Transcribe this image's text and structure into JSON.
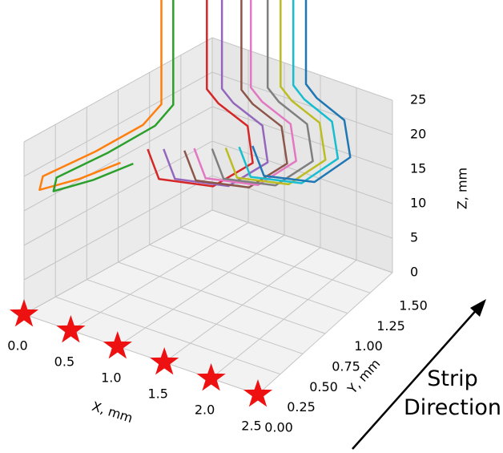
{
  "chart_data": {
    "type": "line3d",
    "xlabel": "X, mm",
    "ylabel": "Y, mm",
    "zlabel": "Z, mm",
    "annotation": "Strip Direction",
    "xlim": [
      0,
      2.5
    ],
    "ylim": [
      0,
      1.5
    ],
    "zlim": [
      0,
      25
    ],
    "xticks": [
      {
        "value": 0,
        "label": "0.0"
      },
      0.5,
      {
        "value": 1,
        "label": "1.0"
      },
      1.5,
      {
        "value": 2,
        "label": "2.0"
      },
      2.5
    ],
    "yticks": [
      {
        "value": 0,
        "label": "0.00"
      },
      0.25,
      {
        "value": 0.5,
        "label": "0.50"
      },
      0.75,
      {
        "value": 1,
        "label": "1.00"
      },
      1.25,
      {
        "value": 1.5,
        "label": "1.50"
      }
    ],
    "zticks": [
      0,
      5,
      10,
      15,
      20,
      25
    ],
    "grid": true,
    "markers": {
      "color": "#ee1111",
      "x": [
        0,
        0.5,
        1,
        1.5,
        2,
        2.5
      ],
      "y": [
        0,
        0,
        0,
        0,
        0,
        0
      ],
      "z": [
        0,
        0,
        0,
        0,
        0,
        0
      ]
    },
    "series": [
      {
        "color": "#ff7f0e",
        "x": [
          0.15,
          0.15,
          0.15,
          0.1,
          0,
          0.1,
          0.2,
          0.25
        ],
        "y": [
          1,
          1,
          0.85,
          0.5,
          0.15,
          0.05,
          0.3,
          0.6
        ],
        "z": [
          45,
          21,
          19.5,
          19,
          18.5,
          18,
          17.5,
          17
        ]
      },
      {
        "color": "#2ca02c",
        "x": [
          0.3,
          0.3,
          0.3,
          0.25,
          0.15,
          0.25,
          0.35,
          0.4
        ],
        "y": [
          1,
          1,
          0.85,
          0.5,
          0.15,
          0.05,
          0.3,
          0.6
        ],
        "z": [
          45,
          21.5,
          20,
          19.5,
          19,
          18.5,
          18,
          17.5
        ]
      },
      {
        "color": "#d62728",
        "x": [
          0.5,
          0.5,
          0.65,
          1.1,
          1.5,
          1.4,
          0.9,
          0.5
        ],
        "y": [
          1.15,
          1.15,
          1.15,
          1.1,
          0.85,
          0.55,
          0.45,
          0.65
        ],
        "z": [
          45,
          23,
          21.5,
          20.5,
          19.5,
          19,
          19,
          19.5
        ]
      },
      {
        "color": "#9467bd",
        "x": [
          0.62,
          0.62,
          0.77,
          1.22,
          1.62,
          1.52,
          1.02,
          0.62
        ],
        "y": [
          1.2,
          1.2,
          1.2,
          1.15,
          0.9,
          0.6,
          0.5,
          0.7
        ],
        "z": [
          45,
          23,
          21.5,
          20.5,
          19.5,
          19,
          19,
          19.5
        ]
      },
      {
        "color": "#8c564b",
        "x": [
          0.8,
          0.8,
          0.95,
          1.4,
          1.8,
          1.7,
          1.2,
          0.8
        ],
        "y": [
          1.25,
          1.25,
          1.25,
          1.2,
          0.95,
          0.65,
          0.55,
          0.75
        ],
        "z": [
          45,
          23,
          21.5,
          20.5,
          19.5,
          19,
          19,
          19.5
        ]
      },
      {
        "color": "#e377c2",
        "x": [
          0.85,
          0.85,
          1,
          1.45,
          1.85,
          1.75,
          1.25,
          0.85
        ],
        "y": [
          1.3,
          1.3,
          1.3,
          1.25,
          1,
          0.7,
          0.6,
          0.8
        ],
        "z": [
          45,
          23,
          21.5,
          20.5,
          19.5,
          19,
          19,
          19.5
        ]
      },
      {
        "color": "#7f7f7f",
        "x": [
          1,
          1,
          1.15,
          1.6,
          2,
          1.9,
          1.4,
          1
        ],
        "y": [
          1.35,
          1.35,
          1.35,
          1.3,
          1.05,
          0.75,
          0.65,
          0.85
        ],
        "z": [
          45,
          23,
          21.5,
          20.5,
          19.5,
          19,
          19,
          19.5
        ]
      },
      {
        "color": "#bcbd22",
        "x": [
          1.1,
          1.1,
          1.25,
          1.7,
          2.1,
          2,
          1.5,
          1.1
        ],
        "y": [
          1.4,
          1.4,
          1.4,
          1.35,
          1.1,
          0.8,
          0.7,
          0.9
        ],
        "z": [
          45,
          23,
          21.5,
          20.5,
          19.5,
          19,
          19,
          19.5
        ]
      },
      {
        "color": "#17becf",
        "x": [
          1.2,
          1.2,
          1.35,
          1.8,
          2.2,
          2.1,
          1.6,
          1.2
        ],
        "y": [
          1.45,
          1.45,
          1.45,
          1.4,
          1.15,
          0.85,
          0.75,
          0.95
        ],
        "z": [
          45,
          23,
          21.5,
          20.5,
          19.5,
          19,
          19,
          19.5
        ]
      },
      {
        "color": "#1f77b4",
        "x": [
          1.3,
          1.3,
          1.45,
          1.9,
          2.3,
          2.2,
          1.7,
          1.3
        ],
        "y": [
          1.5,
          1.5,
          1.5,
          1.45,
          1.2,
          0.9,
          0.8,
          1
        ],
        "z": [
          45,
          23,
          21.5,
          20.5,
          19.5,
          19,
          19,
          19.5
        ]
      }
    ]
  }
}
